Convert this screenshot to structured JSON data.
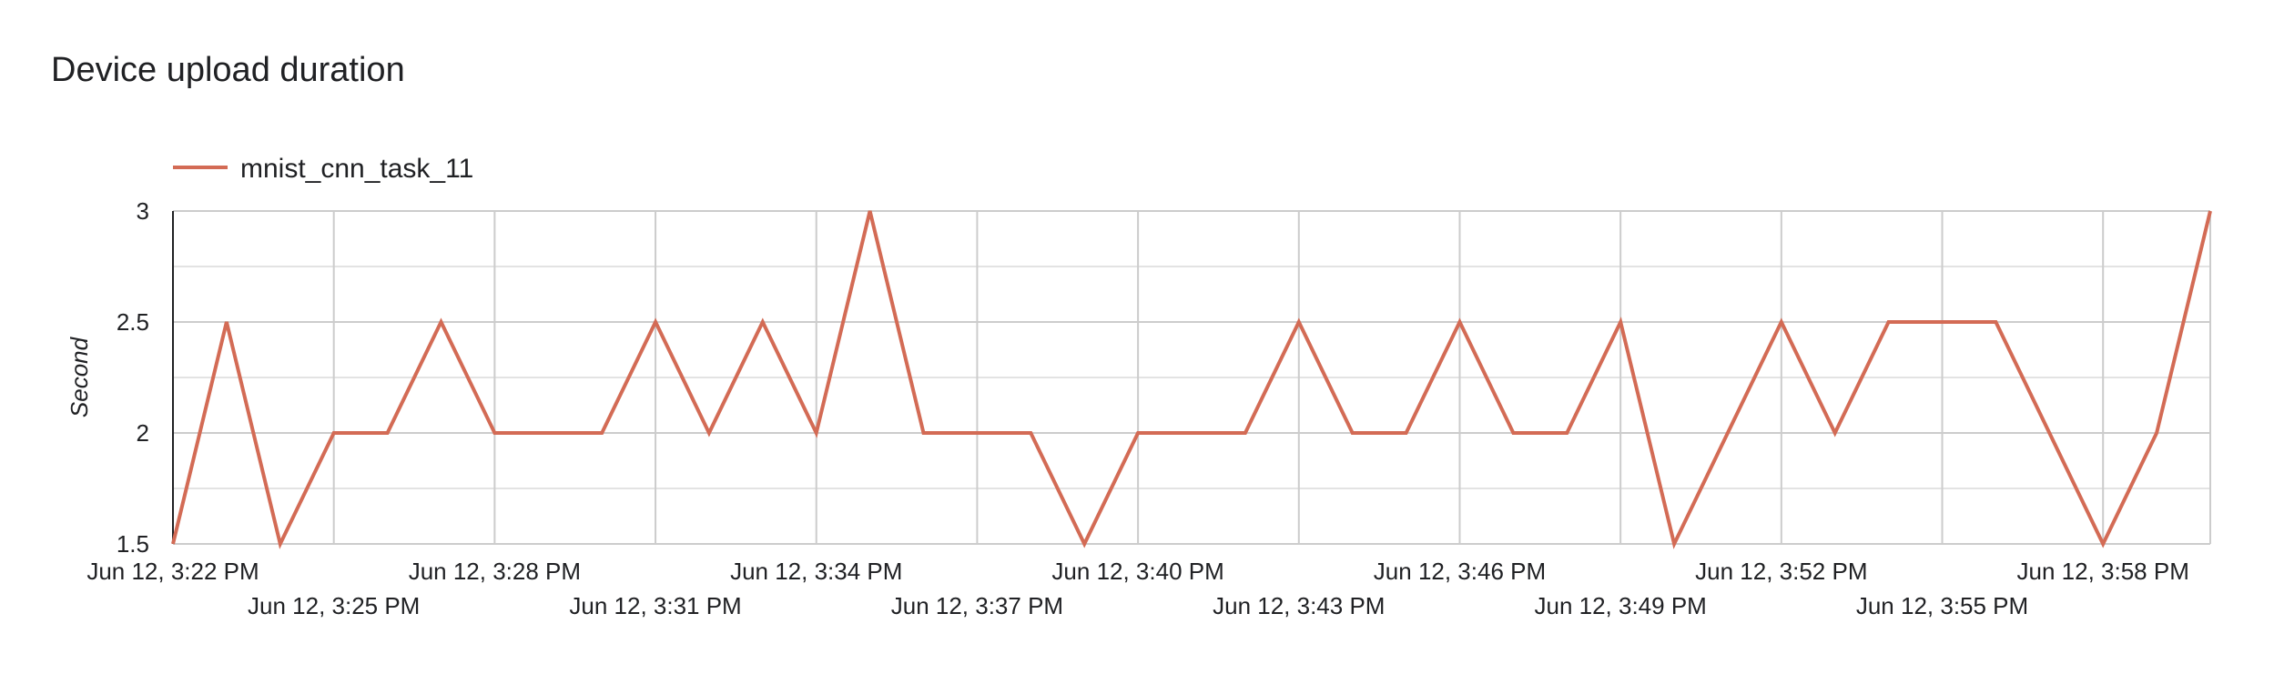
{
  "chart_data": {
    "type": "line",
    "title": "Device upload duration",
    "ylabel": "Second",
    "xlabel": "",
    "ylim": [
      1.5,
      3
    ],
    "yticks": [
      "1.5",
      "2",
      "2.5",
      "3"
    ],
    "xticks": [
      "Jun 12, 3:22 PM",
      "Jun 12, 3:25 PM",
      "Jun 12, 3:28 PM",
      "Jun 12, 3:31 PM",
      "Jun 12, 3:34 PM",
      "Jun 12, 3:37 PM",
      "Jun 12, 3:40 PM",
      "Jun 12, 3:43 PM",
      "Jun 12, 3:46 PM",
      "Jun 12, 3:49 PM",
      "Jun 12, 3:52 PM",
      "Jun 12, 3:55 PM",
      "Jun 12, 3:58 PM"
    ],
    "legend_position": "top-left",
    "grid": true,
    "series": [
      {
        "name": "mnist_cnn_task_11",
        "color": "#d36b55",
        "x": [
          "3:22 PM",
          "3:23 PM",
          "3:24 PM",
          "3:25 PM",
          "3:26 PM",
          "3:27 PM",
          "3:28 PM",
          "3:29 PM",
          "3:30 PM",
          "3:31 PM",
          "3:32 PM",
          "3:33 PM",
          "3:34 PM",
          "3:35 PM",
          "3:36 PM",
          "3:37 PM",
          "3:38 PM",
          "3:39 PM",
          "3:40 PM",
          "3:41 PM",
          "3:42 PM",
          "3:43 PM",
          "3:44 PM",
          "3:45 PM",
          "3:46 PM",
          "3:47 PM",
          "3:48 PM",
          "3:49 PM",
          "3:50 PM",
          "3:51 PM",
          "3:52 PM",
          "3:53 PM",
          "3:54 PM",
          "3:55 PM",
          "3:56 PM",
          "3:57 PM",
          "3:58 PM",
          "3:59 PM",
          "4:00 PM"
        ],
        "values": [
          1.5,
          2.5,
          1.5,
          2,
          2,
          2.5,
          2,
          2,
          2,
          2.5,
          2,
          2.5,
          2,
          3,
          2,
          2,
          2,
          1.5,
          2,
          2,
          2,
          2.5,
          2,
          2,
          2.5,
          2,
          2,
          2.5,
          1.5,
          2,
          2.5,
          2,
          2.5,
          2.5,
          2.5,
          2,
          1.5,
          2,
          3
        ]
      }
    ]
  }
}
